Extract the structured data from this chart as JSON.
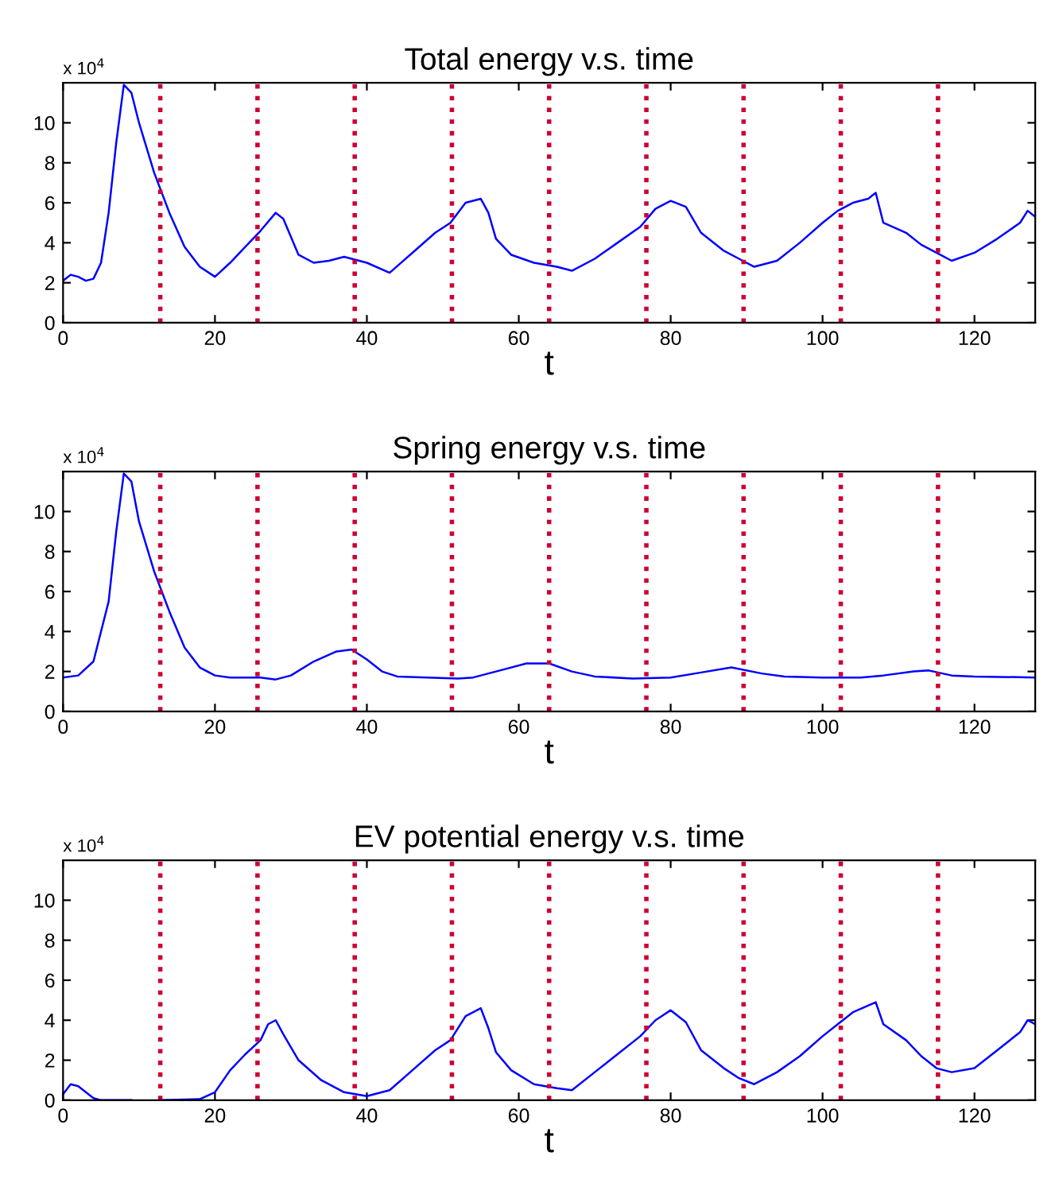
{
  "chart_data": [
    {
      "type": "line",
      "title": "Total energy v.s. time",
      "xlabel": "t",
      "annotations": [
        "x 10$^{4}$"
      ],
      "xlim": [
        0,
        128
      ],
      "xticks": [
        0,
        20,
        40,
        60,
        80,
        100,
        120
      ],
      "ylim": [
        0,
        12
      ],
      "yticks": [
        0,
        2,
        4,
        6,
        8,
        10
      ],
      "grid": false,
      "legend": false,
      "line_style": "solid",
      "ref_lines": [
        {
          "axis": "x",
          "value": 12.8,
          "color": "#cc0033",
          "line_style": "dotted"
        },
        {
          "axis": "x",
          "value": 25.6,
          "color": "#cc0033",
          "line_style": "dotted"
        },
        {
          "axis": "x",
          "value": 38.4,
          "color": "#cc0033",
          "line_style": "dotted"
        },
        {
          "axis": "x",
          "value": 51.2,
          "color": "#cc0033",
          "line_style": "dotted"
        },
        {
          "axis": "x",
          "value": 64,
          "color": "#cc0033",
          "line_style": "dotted"
        },
        {
          "axis": "x",
          "value": 76.8,
          "color": "#cc0033",
          "line_style": "dotted"
        },
        {
          "axis": "x",
          "value": 89.6,
          "color": "#cc0033",
          "line_style": "dotted"
        },
        {
          "axis": "x",
          "value": 102.4,
          "color": "#cc0033",
          "line_style": "dotted"
        },
        {
          "axis": "x",
          "value": 115.2,
          "color": "#cc0033",
          "line_style": "dotted"
        }
      ],
      "series": [
        {
          "color": "#0000ff",
          "x": [
            0,
            1,
            2,
            3,
            4,
            5,
            6,
            7,
            8,
            9,
            10,
            12,
            14,
            16,
            18,
            20,
            22,
            24,
            26,
            28,
            29,
            31,
            33,
            35,
            37,
            40,
            43,
            46,
            49,
            51,
            53,
            55,
            56,
            57,
            59,
            62,
            65,
            67,
            70,
            73,
            76,
            78,
            80,
            82,
            84,
            87,
            89,
            91,
            94,
            97,
            100,
            102,
            104,
            106,
            107,
            108,
            111,
            113,
            115,
            117,
            120,
            123,
            126,
            127,
            128
          ],
          "values": [
            2.1,
            2.4,
            2.3,
            2.1,
            2.2,
            3,
            5.5,
            9,
            11.9,
            11.5,
            10,
            7.5,
            5.5,
            3.8,
            2.8,
            2.3,
            3,
            3.8,
            4.6,
            5.5,
            5.2,
            3.4,
            3.0,
            3.1,
            3.3,
            3.0,
            2.5,
            3.5,
            4.5,
            5,
            6,
            6.2,
            5.5,
            4.2,
            3.4,
            3.0,
            2.8,
            2.6,
            3.2,
            4.0,
            4.8,
            5.7,
            6.1,
            5.8,
            4.5,
            3.6,
            3.2,
            2.8,
            3.1,
            4.0,
            5.0,
            5.6,
            6.0,
            6.2,
            6.5,
            5.0,
            4.5,
            3.9,
            3.5,
            3.1,
            3.5,
            4.2,
            5.0,
            5.6,
            5.3
          ]
        }
      ]
    },
    {
      "type": "line",
      "title": "Spring energy v.s. time",
      "xlabel": "t",
      "annotations": [
        "x 10$^{4}$"
      ],
      "xlim": [
        0,
        128
      ],
      "xticks": [
        0,
        20,
        40,
        60,
        80,
        100,
        120
      ],
      "ylim": [
        0,
        12
      ],
      "yticks": [
        0,
        2,
        4,
        6,
        8,
        10
      ],
      "grid": false,
      "legend": false,
      "line_style": "solid",
      "ref_lines": [
        {
          "axis": "x",
          "value": 12.8,
          "color": "#cc0033",
          "line_style": "dotted"
        },
        {
          "axis": "x",
          "value": 25.6,
          "color": "#cc0033",
          "line_style": "dotted"
        },
        {
          "axis": "x",
          "value": 38.4,
          "color": "#cc0033",
          "line_style": "dotted"
        },
        {
          "axis": "x",
          "value": 51.2,
          "color": "#cc0033",
          "line_style": "dotted"
        },
        {
          "axis": "x",
          "value": 64,
          "color": "#cc0033",
          "line_style": "dotted"
        },
        {
          "axis": "x",
          "value": 76.8,
          "color": "#cc0033",
          "line_style": "dotted"
        },
        {
          "axis": "x",
          "value": 89.6,
          "color": "#cc0033",
          "line_style": "dotted"
        },
        {
          "axis": "x",
          "value": 102.4,
          "color": "#cc0033",
          "line_style": "dotted"
        },
        {
          "axis": "x",
          "value": 115.2,
          "color": "#cc0033",
          "line_style": "dotted"
        }
      ],
      "series": [
        {
          "color": "#0000ff",
          "x": [
            0,
            2,
            4,
            6,
            7,
            8,
            9,
            10,
            12,
            14,
            16,
            18,
            20,
            22,
            26,
            28,
            30,
            33,
            36,
            38,
            40,
            42,
            44,
            48,
            52,
            54,
            58,
            61,
            64,
            67,
            70,
            75,
            80,
            84,
            88,
            92,
            95,
            100,
            105,
            108,
            112,
            114,
            117,
            120,
            128
          ],
          "values": [
            1.7,
            1.8,
            2.5,
            5.5,
            9,
            11.9,
            11.5,
            9.5,
            7,
            5,
            3.2,
            2.2,
            1.8,
            1.7,
            1.7,
            1.6,
            1.8,
            2.5,
            3.0,
            3.1,
            2.6,
            2.0,
            1.75,
            1.7,
            1.65,
            1.7,
            2.1,
            2.4,
            2.4,
            2.0,
            1.75,
            1.65,
            1.7,
            1.95,
            2.2,
            1.9,
            1.75,
            1.7,
            1.7,
            1.8,
            2.0,
            2.05,
            1.8,
            1.75,
            1.7
          ]
        }
      ]
    },
    {
      "type": "line",
      "title": "EV potential energy v.s. time",
      "xlabel": "t",
      "annotations": [
        "x 10$^{4}$"
      ],
      "xlim": [
        0,
        128
      ],
      "xticks": [
        0,
        20,
        40,
        60,
        80,
        100,
        120
      ],
      "ylim": [
        0,
        12
      ],
      "yticks": [
        0,
        2,
        4,
        6,
        8,
        10
      ],
      "grid": false,
      "legend": false,
      "line_style": "solid",
      "ref_lines": [
        {
          "axis": "x",
          "value": 12.8,
          "color": "#cc0033",
          "line_style": "dotted"
        },
        {
          "axis": "x",
          "value": 25.6,
          "color": "#cc0033",
          "line_style": "dotted"
        },
        {
          "axis": "x",
          "value": 38.4,
          "color": "#cc0033",
          "line_style": "dotted"
        },
        {
          "axis": "x",
          "value": 51.2,
          "color": "#cc0033",
          "line_style": "dotted"
        },
        {
          "axis": "x",
          "value": 64,
          "color": "#cc0033",
          "line_style": "dotted"
        },
        {
          "axis": "x",
          "value": 76.8,
          "color": "#cc0033",
          "line_style": "dotted"
        },
        {
          "axis": "x",
          "value": 89.6,
          "color": "#cc0033",
          "line_style": "dotted"
        },
        {
          "axis": "x",
          "value": 102.4,
          "color": "#cc0033",
          "line_style": "dotted"
        },
        {
          "axis": "x",
          "value": 115.2,
          "color": "#cc0033",
          "line_style": "dotted"
        }
      ],
      "series": [
        {
          "color": "#0000ff",
          "x": [
            0,
            1,
            2,
            3,
            4,
            5,
            9,
            11,
            13,
            18,
            20,
            22,
            24,
            26,
            27,
            28,
            29,
            31,
            34,
            37,
            40,
            43,
            46,
            49,
            51,
            53,
            55,
            56,
            57,
            59,
            62,
            65,
            67,
            70,
            73,
            76,
            78,
            80,
            82,
            84,
            87,
            89,
            91,
            94,
            97,
            100,
            102,
            104,
            107,
            108,
            111,
            113,
            115,
            117,
            120,
            123,
            126,
            127,
            128
          ],
          "values": [
            0.3,
            0.8,
            0.7,
            0.4,
            0.1,
            0,
            0,
            null,
            0,
            0.05,
            0.4,
            1.5,
            2.3,
            3.0,
            3.8,
            4.0,
            3.3,
            2.0,
            1.0,
            0.4,
            0.2,
            0.5,
            1.5,
            2.5,
            3.0,
            4.2,
            4.6,
            3.6,
            2.4,
            1.5,
            0.8,
            0.6,
            0.5,
            1.4,
            2.3,
            3.2,
            4.0,
            4.5,
            3.9,
            2.5,
            1.6,
            1.1,
            0.8,
            1.4,
            2.2,
            3.2,
            3.8,
            4.4,
            4.9,
            3.8,
            3.0,
            2.2,
            1.6,
            1.4,
            1.6,
            2.5,
            3.4,
            4.0,
            3.8
          ]
        }
      ]
    }
  ]
}
